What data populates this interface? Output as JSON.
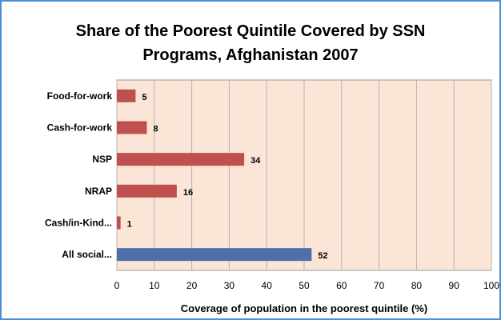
{
  "chart_data": {
    "type": "bar",
    "orientation": "horizontal",
    "title_lines": [
      "Share of the Poorest Quintile Covered by SSN",
      "Programs, Afghanistan 2007"
    ],
    "categories": [
      "Food-for-work",
      "Cash-for-work",
      "NSP",
      "NRAP",
      "Cash/in-Kind...",
      "All social..."
    ],
    "values": [
      5,
      8,
      34,
      16,
      1,
      52
    ],
    "bar_colors": [
      "#c0504d",
      "#c0504d",
      "#c0504d",
      "#c0504d",
      "#c0504d",
      "#4f6fa8"
    ],
    "xlabel": "Coverage of population in the poorest quintile (%)",
    "ylabel": "",
    "xlim": [
      0,
      100
    ],
    "xticks": [
      0,
      10,
      20,
      30,
      40,
      50,
      60,
      70,
      80,
      90,
      100
    ],
    "grid": "vertical",
    "plot_background": "#fbe5d6",
    "legend": "none"
  }
}
